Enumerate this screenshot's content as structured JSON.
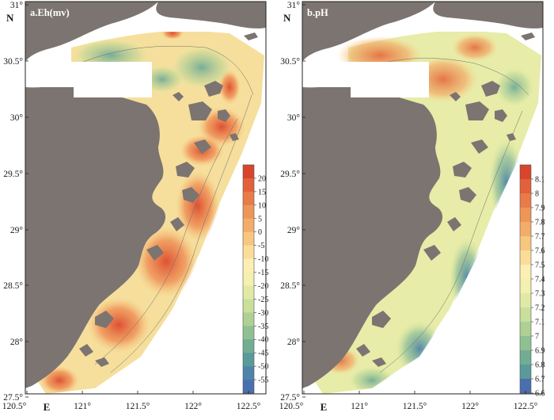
{
  "panels": [
    {
      "id": "a",
      "title": "a.Eh(mv)",
      "legend_labels": [
        "20",
        "15",
        "10",
        "5",
        "0",
        "-5",
        "-10",
        "-15",
        "-20",
        "-25",
        "-30",
        "-35",
        "-40",
        "-45",
        "-50",
        "-55"
      ],
      "legend_colors": [
        "#d8442c",
        "#e2613a",
        "#e87b47",
        "#ee9657",
        "#f3ad69",
        "#f7c77f",
        "#fbdd98",
        "#fdeeb3",
        "#f3f0b0",
        "#e0eaa6",
        "#c9df9b",
        "#aed193",
        "#8fc091",
        "#72ad93",
        "#5a9a98",
        "#4f84a8",
        "#4a6fae"
      ]
    },
    {
      "id": "b",
      "title": "b.pH",
      "legend_labels": [
        "8.1",
        "8",
        "7.9",
        "7.8",
        "7.7",
        "7.6",
        "7.5",
        "7.4",
        "7.3",
        "7.2",
        "7.1",
        "7",
        "6.9",
        "6.8",
        "6.7",
        "6.6"
      ],
      "legend_colors": [
        "#d8442c",
        "#e2613a",
        "#e87b47",
        "#ee9657",
        "#f3ad69",
        "#f7c77f",
        "#fbdd98",
        "#fdeeb3",
        "#f3f0b0",
        "#e0eaa6",
        "#c9df9b",
        "#aed193",
        "#8fc091",
        "#72ad93",
        "#5a9a98",
        "#4a6fae"
      ]
    }
  ],
  "axes": {
    "lat_labels": [
      "31°",
      "30.5°",
      "30°",
      "29.5°",
      "29°",
      "28.5°",
      "28°",
      "27.5°"
    ],
    "lon_labels": [
      "120.5°",
      "121°",
      "121.5°",
      "122°",
      "122.5°"
    ],
    "north_label": "N",
    "east_label": "E"
  }
}
